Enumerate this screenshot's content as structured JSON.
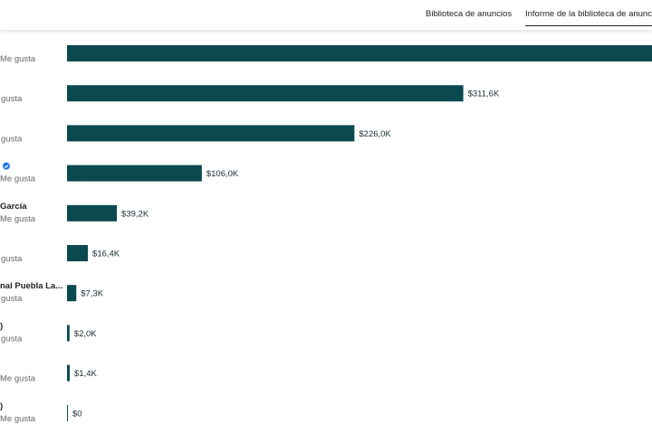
{
  "tabs": [
    {
      "label": "Biblioteca de anuncios"
    },
    {
      "label": "Informe de la biblioteca de anuncio"
    }
  ],
  "chart_data": {
    "type": "bar",
    "orientation": "horizontal",
    "bar_color": "#0a4a4f",
    "verified_color": "#1b74e4",
    "xlim": [
      0,
      460
    ],
    "rows": [
      {
        "name": "",
        "likes": "Me gusta",
        "value": 460,
        "value_label": "",
        "verified": false
      },
      {
        "name": "",
        "likes": "gusta",
        "value": 311.6,
        "value_label": "$311,6K",
        "verified": false
      },
      {
        "name": "",
        "likes": "gusta",
        "value": 226.0,
        "value_label": "$226,0K",
        "verified": false
      },
      {
        "name": "",
        "likes": "Me gusta",
        "value": 106.0,
        "value_label": "$106,0K",
        "verified": true
      },
      {
        "name": "García",
        "likes": "Me gusta",
        "value": 39.2,
        "value_label": "$39,2K",
        "verified": false
      },
      {
        "name": "",
        "likes": "gusta",
        "value": 16.4,
        "value_label": "$16,4K",
        "verified": false
      },
      {
        "name": "nal Puebla La...",
        "likes": "gusta",
        "value": 7.3,
        "value_label": "$7,3K",
        "verified": false
      },
      {
        "name": ")",
        "likes": "gusta",
        "value": 2.0,
        "value_label": "$2,0K",
        "verified": false
      },
      {
        "name": "",
        "likes": "Me gusta",
        "value": 1.4,
        "value_label": "$1,4K",
        "verified": false
      },
      {
        "name": ")",
        "likes": "Me gusta",
        "value": 0,
        "value_label": "$0",
        "verified": false
      }
    ]
  }
}
